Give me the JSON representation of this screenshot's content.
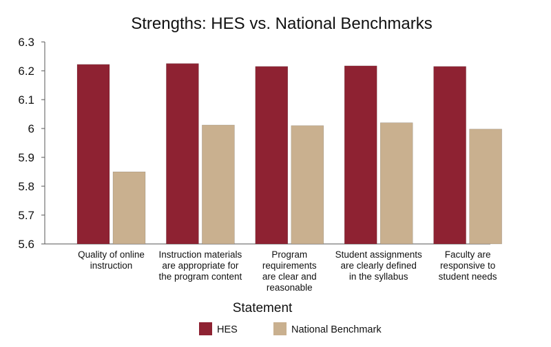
{
  "chart_data": {
    "type": "bar",
    "title": "Strengths: HES vs. National Benchmarks",
    "xlabel": "Statement",
    "ylabel": "",
    "ylim": [
      5.6,
      6.3
    ],
    "yticks": [
      "5.6",
      "5.7",
      "5.8",
      "5.9",
      "6",
      "6.1",
      "6.2",
      "6.3"
    ],
    "grid": false,
    "legend_position": "bottom-center",
    "categories": [
      [
        "Quality of online",
        "instruction"
      ],
      [
        "Instruction materials",
        "are appropriate for",
        "the program content"
      ],
      [
        "Program",
        "requirements",
        "are clear and",
        "reasonable"
      ],
      [
        "Student assignments",
        "are clearly defined",
        "in the syllabus"
      ],
      [
        "Faculty are",
        "responsive to",
        "student needs"
      ]
    ],
    "series": [
      {
        "name": "HES",
        "color": "#8e2232",
        "values": [
          6.222,
          6.225,
          6.215,
          6.217,
          6.215
        ]
      },
      {
        "name": "National Benchmark",
        "color": "#c9b08f",
        "values": [
          5.85,
          6.012,
          6.01,
          6.02,
          5.998
        ]
      }
    ]
  }
}
